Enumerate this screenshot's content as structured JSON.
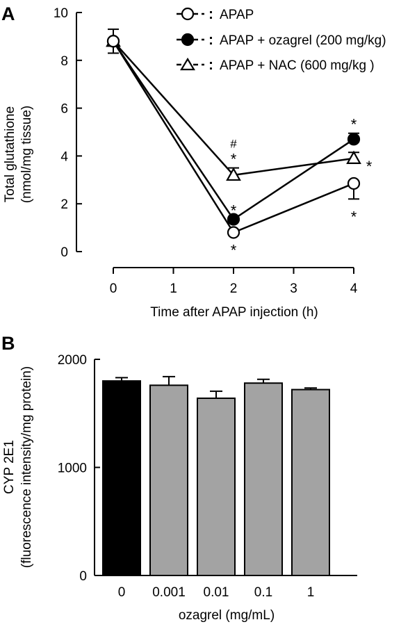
{
  "chart_data": [
    {
      "panel": "A",
      "type": "line",
      "ylabel_line1": "Total  glutathione",
      "ylabel_line2": "(nmol/mg tissue)",
      "xlabel": "Time after APAP injection (h)",
      "xticks": [
        "0",
        "1",
        "2",
        "3",
        "4"
      ],
      "yticks": [
        "0",
        "2",
        "4",
        "6",
        "8",
        "10"
      ],
      "xlim": [
        0,
        4
      ],
      "ylim": [
        0,
        10
      ],
      "legend_position": "top-right",
      "series": [
        {
          "name": "APAP",
          "marker": "open-circle",
          "x": [
            0,
            2,
            4
          ],
          "y": [
            8.8,
            0.8,
            2.85
          ],
          "err_up": [
            0,
            0,
            0
          ],
          "err_down": [
            0,
            0,
            0.65
          ],
          "annot_below": [
            "",
            "*",
            "*"
          ]
        },
        {
          "name": "APAP + ozagrel (200 mg/kg)",
          "marker": "filled-circle",
          "x": [
            0,
            2,
            4
          ],
          "y": [
            8.8,
            1.35,
            4.7
          ],
          "err_up": [
            0,
            0,
            0.25
          ],
          "err_down": [
            0,
            0,
            0
          ],
          "annot_above": [
            "",
            "*",
            "*"
          ]
        },
        {
          "name": "APAP + NAC (600 mg/kg )",
          "marker": "open-triangle",
          "x": [
            0,
            2,
            4
          ],
          "y": [
            8.8,
            3.2,
            3.9
          ],
          "err_up": [
            0.5,
            0.3,
            0.25
          ],
          "err_down": [
            0.5,
            0,
            0
          ],
          "annot_above": [
            "",
            "*",
            ""
          ],
          "annot_hash": [
            "",
            "#",
            ""
          ],
          "annot_right": [
            "",
            "",
            "*"
          ]
        }
      ],
      "legend_sep": ":"
    },
    {
      "panel": "B",
      "type": "bar",
      "ylabel_line1": "CYP 2E1",
      "ylabel_line2": "(fluorescence intensity/mg protein)",
      "xlabel": "ozagrel (mg/mL)",
      "categories": [
        "0",
        "0.001",
        "0.01",
        "0.1",
        "1"
      ],
      "values": [
        1800,
        1760,
        1640,
        1780,
        1720
      ],
      "err_up": [
        30,
        80,
        65,
        35,
        15
      ],
      "bar_colors": [
        "#000000",
        "#a3a3a3",
        "#a3a3a3",
        "#a3a3a3",
        "#a3a3a3"
      ],
      "yticks": [
        "0",
        "1000",
        "2000"
      ],
      "ylim": [
        0,
        2000
      ]
    }
  ]
}
